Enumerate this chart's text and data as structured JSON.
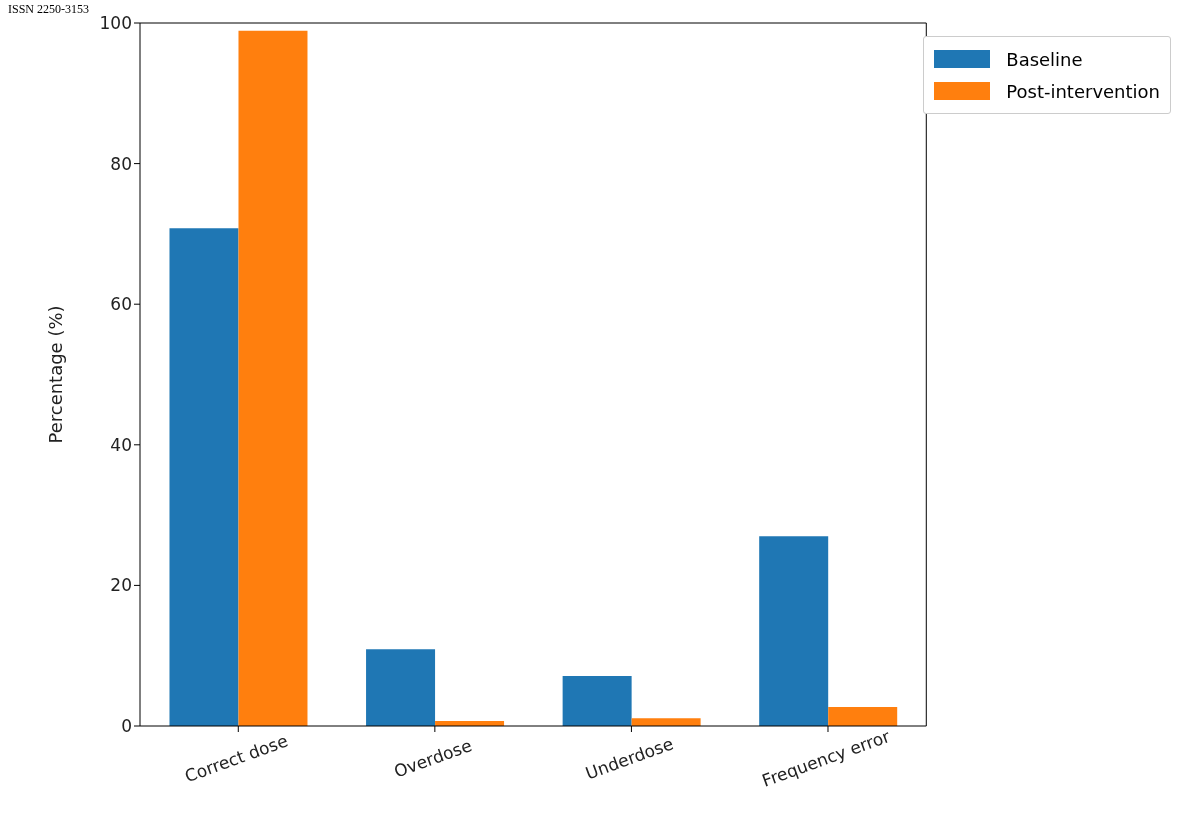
{
  "chart_data": {
    "type": "bar",
    "categories": [
      "Correct dose",
      "Overdose",
      "Underdose",
      "Frequency error"
    ],
    "series": [
      {
        "name": "Baseline",
        "color": "#1f77b4",
        "values": [
          70.8,
          10.9,
          7.1,
          27.0
        ]
      },
      {
        "name": "Post-intervention",
        "color": "#ff7f0e",
        "values": [
          98.9,
          0.7,
          1.1,
          2.7
        ]
      }
    ],
    "ylabel": "Percentage (%)",
    "ylim": [
      0,
      100
    ],
    "yticks": [
      0,
      20,
      40,
      60,
      80,
      100
    ],
    "grid": false,
    "legend": "top right",
    "annotations": [
      "ISSN 2250-3153"
    ]
  }
}
